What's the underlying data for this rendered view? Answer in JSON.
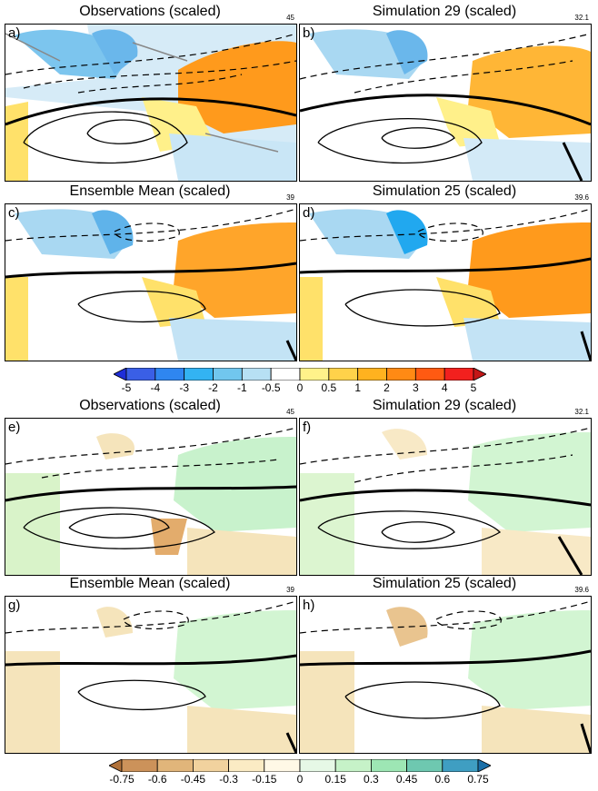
{
  "temperature_section": {
    "panels": [
      {
        "id": "a",
        "label": "a)",
        "title": "Observations (scaled)",
        "scale": "45"
      },
      {
        "id": "b",
        "label": "b)",
        "title": "Simulation 29 (scaled)",
        "scale": "32.1"
      },
      {
        "id": "c",
        "label": "c)",
        "title": "Ensemble Mean (scaled)",
        "scale": "39"
      },
      {
        "id": "d",
        "label": "d)",
        "title": "Simulation 25 (scaled)",
        "scale": "39.6"
      }
    ],
    "colorbar": {
      "ticks": [
        "-5",
        "-4",
        "-3",
        "-2",
        "-1",
        "-0.5",
        "0",
        "0.5",
        "1",
        "2",
        "3",
        "4",
        "5"
      ],
      "colors": [
        "#1f2ed8",
        "#3a5fe6",
        "#2f86f0",
        "#33b3f2",
        "#71c6ee",
        "#b7e0f4",
        "#ffffff",
        "#fff28a",
        "#ffd24a",
        "#ffb21f",
        "#ff8a14",
        "#ff5a12",
        "#f2201e",
        "#c41717"
      ]
    }
  },
  "precip_section": {
    "panels": [
      {
        "id": "e",
        "label": "e)",
        "title": "Observations (scaled)",
        "scale": "45"
      },
      {
        "id": "f",
        "label": "f)",
        "title": "Simulation 29 (scaled)",
        "scale": "32.1"
      },
      {
        "id": "g",
        "label": "g)",
        "title": "Ensemble Mean (scaled)",
        "scale": "39"
      },
      {
        "id": "h",
        "label": "h)",
        "title": "Simulation 25 (scaled)",
        "scale": "39.6"
      }
    ],
    "colorbar": {
      "ticks": [
        "-0.75",
        "-0.6",
        "-0.45",
        "-0.3",
        "-0.15",
        "0",
        "0.15",
        "0.3",
        "0.45",
        "0.6",
        "0.75"
      ],
      "colors": [
        "#b0713a",
        "#cc925a",
        "#e1b57a",
        "#f1d29e",
        "#fbebc4",
        "#fff8e6",
        "#e6f8e6",
        "#c6f2c8",
        "#9de6b4",
        "#6ec8b0",
        "#3f9ec2",
        "#1b6fa8"
      ]
    }
  }
}
